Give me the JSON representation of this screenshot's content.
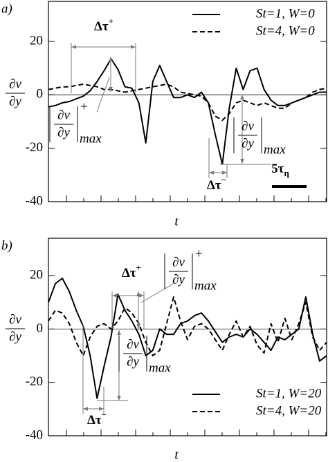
{
  "chart_data": [
    {
      "type": "line",
      "panel_label": "a)",
      "x_label": "t",
      "y_label": {
        "numerator": "∂v",
        "denominator": "∂y"
      },
      "ylim": [
        -40,
        35
      ],
      "yticks": [
        -40,
        -20,
        0,
        20
      ],
      "series": [
        {
          "name": "St=1, W=0",
          "color": "#000000",
          "dash": "solid",
          "values": [
            -4.5,
            -4,
            -3,
            -2.5,
            -1.5,
            -0.5,
            1.5,
            5,
            9,
            13.5,
            9.5,
            3,
            2.5,
            -3,
            -18,
            5,
            11,
            5,
            -1,
            -1,
            0,
            -1,
            1,
            -3,
            -15,
            -26,
            -5,
            10,
            2,
            9,
            10,
            2,
            -2,
            -4,
            -4,
            -3,
            -2,
            -1,
            0,
            1,
            1
          ]
        },
        {
          "name": "St=4, W=0",
          "color": "#000000",
          "dash": "dashed",
          "values": [
            2,
            2.5,
            3,
            3,
            3.5,
            4,
            3.5,
            3,
            2,
            2,
            1.5,
            1,
            1.5,
            2,
            2.5,
            3,
            3.5,
            4,
            3,
            1,
            0.5,
            0,
            -0.5,
            -3,
            -8,
            -9.5,
            -7,
            -3,
            -2,
            -3,
            -4,
            -3,
            -4,
            -5,
            -5,
            -3,
            -2,
            -1,
            1,
            2,
            2.5
          ]
        }
      ],
      "annotations": [
        {
          "text": "Δτ",
          "sup": "+"
        },
        {
          "numerator": "∂v",
          "denominator": "∂y",
          "sup": "+",
          "sub": "max"
        },
        {
          "text": "Δτ",
          "sup": "−"
        },
        {
          "numerator": "∂v",
          "denominator": "∂y",
          "sub": "max"
        },
        {
          "text": "5τ",
          "sub": "η"
        }
      ]
    },
    {
      "type": "line",
      "panel_label": "b)",
      "x_label": "t",
      "y_label": {
        "numerator": "∂v",
        "denominator": "∂y"
      },
      "ylim": [
        -40,
        34
      ],
      "yticks": [
        -40,
        -20,
        0,
        20
      ],
      "series": [
        {
          "name": "St=1, W=20",
          "color": "#000000",
          "dash": "solid",
          "values": [
            10,
            17,
            19,
            14,
            7,
            1,
            -10,
            -26,
            -14,
            -3,
            13,
            7,
            3,
            -2,
            -10,
            -8,
            0,
            -2,
            -2,
            2,
            3,
            5,
            6,
            3,
            -1,
            -5,
            -3,
            -2,
            -3,
            0,
            -2,
            -5,
            -8,
            -3,
            -4,
            -2,
            0,
            12,
            -2,
            -12,
            -10
          ]
        },
        {
          "name": "St=4, W=20",
          "color": "#000000",
          "dash": "dashed",
          "values": [
            3,
            7,
            6,
            2,
            -5,
            -10,
            -3,
            1,
            2,
            0,
            3,
            8,
            6,
            2,
            -5,
            -10,
            -8,
            2,
            12,
            3,
            -4,
            1,
            2,
            0,
            -4,
            -8,
            -2,
            3,
            -3,
            1,
            -6,
            -9,
            2,
            -5,
            4,
            -4,
            2,
            10,
            -3,
            -8,
            -5
          ]
        }
      ],
      "annotations": [
        {
          "text": "Δτ",
          "sup": "+"
        },
        {
          "numerator": "∂v",
          "denominator": "∂y",
          "sup": "+",
          "sub": "max"
        },
        {
          "numerator": "∂v",
          "denominator": "∂y",
          "sub": "max"
        },
        {
          "text": "Δτ",
          "sup": "−"
        }
      ]
    }
  ]
}
